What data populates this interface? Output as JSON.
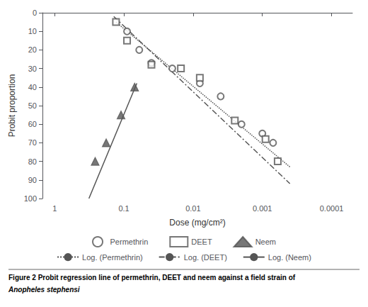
{
  "chart_data": {
    "type": "scatter",
    "xlabel": "Dose (mg/cm²)",
    "ylabel": "Probit proportion",
    "caption": [
      "Figure 2 Probit regression line of permethrin, DEET and neem against a field strain of",
      "Anopheles stephensi"
    ],
    "log": "x",
    "xlim": [
      1.5,
      5e-05
    ],
    "xticks": [
      1,
      0.1,
      0.01,
      0.001,
      0.0001
    ],
    "ylim": [
      100,
      0
    ],
    "yticks": [
      0,
      10,
      20,
      30,
      40,
      50,
      60,
      70,
      80,
      90,
      100
    ],
    "grid": false,
    "legend": "bottom",
    "series": [
      {
        "name": "Log. (Permethrin)",
        "type": "line",
        "line_style": "dotted",
        "color": "#555555",
        "x": [
          0.13,
          0.0004
        ],
        "values": [
          5,
          83
        ]
      },
      {
        "name": "Log. (DEET)",
        "type": "line",
        "line_style": "dashdot",
        "color": "#555555",
        "x": [
          0.14,
          0.0004
        ],
        "values": [
          2,
          92
        ]
      },
      {
        "name": "Log. (Neem)",
        "type": "line",
        "line_style": "solid",
        "color": "#555555",
        "x": [
          0.065,
          0.32
        ],
        "values": [
          38,
          100
        ]
      },
      {
        "name": "Permethrin",
        "type": "scatter",
        "marker": "open_circle",
        "color": "#555555",
        "x": [
          0.09,
          0.06,
          0.04,
          0.02,
          0.008,
          0.004,
          0.002,
          0.001,
          0.0007
        ],
        "values": [
          10,
          20,
          27,
          30,
          38,
          45,
          60,
          65,
          70
        ]
      },
      {
        "name": "DEET",
        "type": "scatter",
        "marker": "open_square",
        "color": "#555555",
        "x": [
          0.13,
          0.09,
          0.04,
          0.015,
          0.008,
          0.0025,
          0.0009,
          0.0006
        ],
        "values": [
          5,
          15,
          28,
          30,
          35,
          58,
          68,
          80
        ]
      },
      {
        "name": "Neem",
        "type": "scatter",
        "marker": "triangle",
        "color": "#555555",
        "x": [
          0.07,
          0.11,
          0.18,
          0.26
        ],
        "values": [
          40,
          55,
          70,
          80
        ]
      }
    ]
  }
}
